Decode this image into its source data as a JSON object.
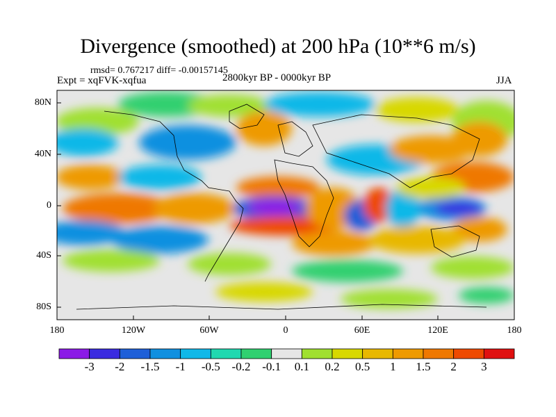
{
  "title": "Divergence (smoothed) at 200 hPa (10**6 m/s)",
  "stats": "rmsd= 0.767217 diff= -0.00157145",
  "expt": "Expt = xqFVK-xqfua",
  "period": "2800kyr BP - 0000kyr BP",
  "season": "JJA",
  "lat_labels": [
    "80N",
    "40N",
    "0",
    "40S",
    "80S"
  ],
  "lon_labels": [
    "180",
    "120W",
    "60W",
    "0",
    "60E",
    "120E",
    "180"
  ],
  "colorbar": {
    "colors": [
      "#8b1ae6",
      "#3a2be0",
      "#1e5fd8",
      "#1090e0",
      "#10b8e8",
      "#20d8b0",
      "#30d070",
      "#e6e6e6",
      "#a0e030",
      "#d8d800",
      "#e8b800",
      "#ee9a00",
      "#ef7800",
      "#ee4a00",
      "#e01010"
    ],
    "labels": [
      "-3",
      "-2",
      "-1.5",
      "-1",
      "-0.5",
      "-0.2",
      "-0.1",
      "0.1",
      "0.2",
      "0.5",
      "1",
      "1.5",
      "2",
      "3"
    ]
  }
}
